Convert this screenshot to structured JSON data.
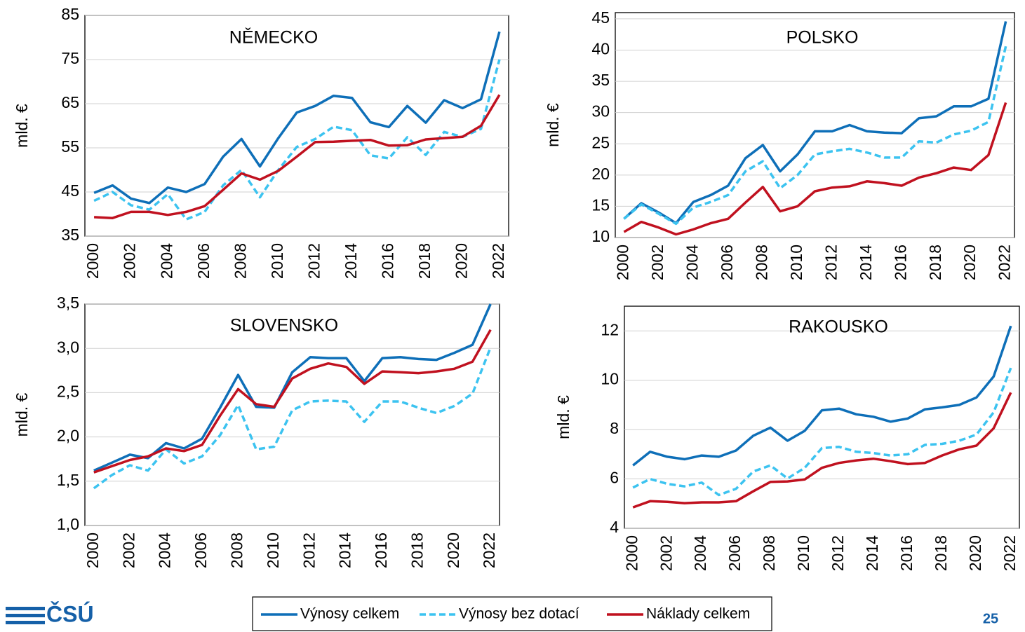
{
  "chart_data": [
    {
      "type": "line",
      "title": "NĚMECKO",
      "ylabel": "mld. €",
      "x": [
        2000,
        2001,
        2002,
        2003,
        2004,
        2005,
        2006,
        2007,
        2008,
        2009,
        2010,
        2011,
        2012,
        2013,
        2014,
        2015,
        2016,
        2017,
        2018,
        2019,
        2020,
        2021,
        2022
      ],
      "xlim": [
        1999.5,
        2022.5
      ],
      "xticks": [
        2000,
        2002,
        2004,
        2006,
        2008,
        2010,
        2012,
        2014,
        2016,
        2018,
        2020,
        2022
      ],
      "ylim": [
        35,
        85
      ],
      "yticks": [
        35,
        45,
        55,
        65,
        75,
        85
      ],
      "grid": true,
      "series": [
        {
          "values": [
            44.8,
            46.5,
            43.5,
            42.5,
            46,
            45,
            46.8,
            53,
            57,
            50.8,
            57.2,
            63,
            64.5,
            66.8,
            66.3,
            60.8,
            59.7,
            64.5,
            60.7,
            65.8,
            64,
            66,
            81.3
          ]
        },
        {
          "values": [
            43,
            45,
            42,
            41,
            44.5,
            38.8,
            40.5,
            46.5,
            50,
            43.8,
            50,
            55.2,
            57,
            59.8,
            59,
            53.3,
            52.6,
            57.4,
            53.4,
            58.6,
            57.5,
            59.3,
            75
          ]
        },
        {
          "values": [
            39.3,
            39.1,
            40.5,
            40.5,
            39.8,
            40.5,
            41.8,
            45.5,
            49.2,
            47.8,
            49.8,
            53,
            56.3,
            56.4,
            56.6,
            56.8,
            55.5,
            55.6,
            56.9,
            57.2,
            57.5,
            60,
            67
          ]
        }
      ]
    },
    {
      "type": "line",
      "title": "POLSKO",
      "ylabel": "mld. €",
      "x": [
        2000,
        2001,
        2002,
        2003,
        2004,
        2005,
        2006,
        2007,
        2008,
        2009,
        2010,
        2011,
        2012,
        2013,
        2014,
        2015,
        2016,
        2017,
        2018,
        2019,
        2020,
        2021,
        2022
      ],
      "xlim": [
        1999.5,
        2022.5
      ],
      "xticks": [
        2000,
        2002,
        2004,
        2006,
        2008,
        2010,
        2012,
        2014,
        2016,
        2018,
        2020,
        2022
      ],
      "ylim": [
        10,
        46
      ],
      "yticks": [
        10,
        15,
        20,
        25,
        30,
        35,
        40,
        45
      ],
      "grid": true,
      "series": [
        {
          "values": [
            13,
            15.5,
            14,
            12.3,
            15.7,
            16.8,
            18.3,
            22.7,
            24.8,
            20.6,
            23.3,
            27,
            27,
            28,
            27,
            26.8,
            26.7,
            29.1,
            29.4,
            31,
            31,
            32.2,
            44.6
          ]
        },
        {
          "values": [
            13,
            15.3,
            13.8,
            12.2,
            14.8,
            15.7,
            16.8,
            20.6,
            22.2,
            17.9,
            20,
            23.3,
            23.8,
            24.2,
            23.6,
            22.8,
            22.8,
            25.4,
            25.2,
            26.5,
            27.1,
            28.5,
            40.6
          ]
        },
        {
          "values": [
            10.9,
            12.5,
            11.6,
            10.5,
            11.3,
            12.3,
            13,
            15.6,
            18.1,
            14.2,
            15,
            17.4,
            18,
            18.2,
            19,
            18.7,
            18.3,
            19.6,
            20.3,
            21.2,
            20.8,
            23.2,
            31.6
          ]
        }
      ]
    },
    {
      "type": "line",
      "title": "SLOVENSKO",
      "ylabel": "mld. €",
      "x": [
        2000,
        2001,
        2002,
        2003,
        2004,
        2005,
        2006,
        2007,
        2008,
        2009,
        2010,
        2011,
        2012,
        2013,
        2014,
        2015,
        2016,
        2017,
        2018,
        2019,
        2020,
        2021,
        2022
      ],
      "xlim": [
        1999.5,
        2022.5
      ],
      "xticks": [
        2000,
        2002,
        2004,
        2006,
        2008,
        2010,
        2012,
        2014,
        2016,
        2018,
        2020,
        2022
      ],
      "ylim": [
        1,
        3.5
      ],
      "yticks": [
        {
          "value": 1,
          "label": "1,0"
        },
        {
          "value": 1.5,
          "label": "1,5"
        },
        {
          "value": 2,
          "label": "2,0"
        },
        {
          "value": 2.5,
          "label": "2,5"
        },
        {
          "value": 3,
          "label": "3,0"
        },
        {
          "value": 3.5,
          "label": "3,5"
        }
      ],
      "grid": true,
      "series": [
        {
          "values": [
            1.62,
            1.71,
            1.8,
            1.76,
            1.93,
            1.87,
            1.98,
            2.33,
            2.7,
            2.34,
            2.33,
            2.73,
            2.9,
            2.89,
            2.89,
            2.63,
            2.89,
            2.9,
            2.88,
            2.87,
            2.95,
            3.04,
            3.5
          ]
        },
        {
          "values": [
            1.42,
            1.57,
            1.68,
            1.62,
            1.86,
            1.7,
            1.78,
            2.02,
            2.36,
            1.86,
            1.89,
            2.3,
            2.4,
            2.41,
            2.4,
            2.17,
            2.4,
            2.4,
            2.33,
            2.27,
            2.35,
            2.49,
            3.01
          ]
        },
        {
          "values": [
            1.6,
            1.67,
            1.74,
            1.78,
            1.87,
            1.84,
            1.91,
            2.24,
            2.54,
            2.37,
            2.34,
            2.66,
            2.77,
            2.83,
            2.79,
            2.6,
            2.74,
            2.73,
            2.72,
            2.74,
            2.77,
            2.85,
            3.21
          ]
        }
      ]
    },
    {
      "type": "line",
      "title": "RAKOUSKO",
      "ylabel": "mld. €",
      "x": [
        2000,
        2001,
        2002,
        2003,
        2004,
        2005,
        2006,
        2007,
        2008,
        2009,
        2010,
        2011,
        2012,
        2013,
        2014,
        2015,
        2016,
        2017,
        2018,
        2019,
        2020,
        2021,
        2022
      ],
      "xlim": [
        1999.5,
        2022.5
      ],
      "xticks": [
        2000,
        2002,
        2004,
        2006,
        2008,
        2010,
        2012,
        2014,
        2016,
        2018,
        2020,
        2022
      ],
      "ylim": [
        4,
        13
      ],
      "yticks": [
        4,
        6,
        8,
        10,
        12
      ],
      "grid": true,
      "series": [
        {
          "values": [
            6.55,
            7.1,
            6.9,
            6.8,
            6.95,
            6.9,
            7.15,
            7.75,
            8.08,
            7.55,
            7.95,
            8.78,
            8.85,
            8.62,
            8.52,
            8.32,
            8.45,
            8.82,
            8.9,
            9,
            9.3,
            10.15,
            12.2
          ]
        },
        {
          "values": [
            5.65,
            6,
            5.8,
            5.7,
            5.85,
            5.35,
            5.6,
            6.3,
            6.55,
            6.02,
            6.45,
            7.25,
            7.3,
            7.1,
            7.05,
            6.95,
            7,
            7.38,
            7.42,
            7.55,
            7.8,
            8.7,
            10.5
          ]
        },
        {
          "values": [
            4.85,
            5.1,
            5.07,
            5.02,
            5.05,
            5.05,
            5.1,
            5.5,
            5.88,
            5.9,
            5.98,
            6.45,
            6.65,
            6.75,
            6.82,
            6.72,
            6.6,
            6.65,
            6.95,
            7.2,
            7.35,
            8.05,
            9.5
          ]
        }
      ]
    }
  ],
  "legend": [
    {
      "name": "Výnosy celkem",
      "color": "#0e6fb8",
      "dashed": false
    },
    {
      "name": "Výnosy bez dotací",
      "color": "#3cc3f0",
      "dashed": true
    },
    {
      "name": "Náklady celkem",
      "color": "#c0111f",
      "dashed": false
    }
  ],
  "logo": "ČSÚ",
  "page_number": 25
}
